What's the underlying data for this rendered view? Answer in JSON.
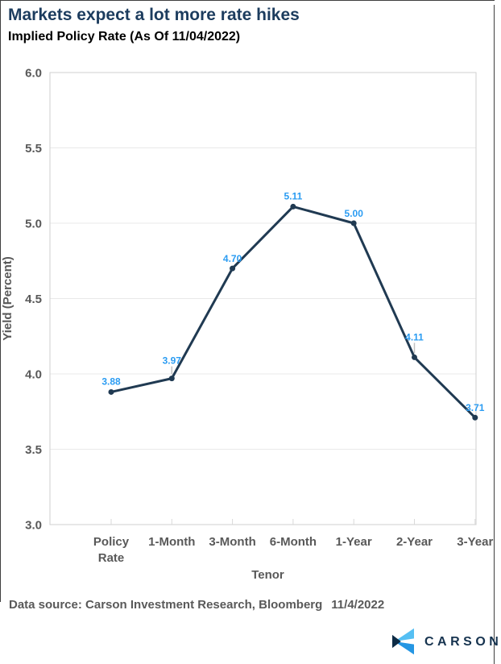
{
  "header": {
    "title": "Markets expect a lot more rate hikes",
    "subtitle": "Implied Policy Rate (As Of 11/04/2022)"
  },
  "chart_data": {
    "type": "line",
    "title": "Implied Policy Rate (As Of 11/04/2022)",
    "categories": [
      "Policy Rate",
      "1-Month",
      "3-Month",
      "6-Month",
      "1-Year",
      "2-Year",
      "3-Year"
    ],
    "values": [
      3.88,
      3.97,
      4.7,
      5.11,
      5.0,
      4.11,
      3.71
    ],
    "point_labels": [
      "3.88",
      "3.97",
      "4.70",
      "5.11",
      "5.00",
      "4.11",
      "3.71"
    ],
    "xlabel": "Tenor",
    "ylabel": "Yield (Percent)",
    "ylim": [
      3.0,
      6.0
    ],
    "ytick_labels": [
      "6.0",
      "5.5",
      "5.0",
      "4.5",
      "4.0",
      "3.5",
      "3.0"
    ],
    "grid": "horizontal",
    "legend": "none",
    "label_dy": [
      -9,
      -18,
      -8,
      -9,
      -8,
      -21,
      -8
    ],
    "label_leader": [
      false,
      true,
      false,
      false,
      false,
      true,
      false
    ],
    "colors": {
      "line": "#203a52",
      "point_label": "#2b9cf2",
      "grid": "#e9e9e9",
      "frame": "#cfcfcf",
      "tick_mark": "#d9d9d9",
      "axis_text": "#595959",
      "leader": "#c0c0c0"
    }
  },
  "footer": {
    "source": "Data source: Carson Investment Research, Bloomberg",
    "date": "11/4/2022"
  },
  "logo": {
    "wordmark": "CARSON",
    "colors": {
      "light_blue": "#55bff3",
      "blue": "#2596e3",
      "navy": "#0d2b45",
      "wordmark": "#16334f"
    }
  }
}
